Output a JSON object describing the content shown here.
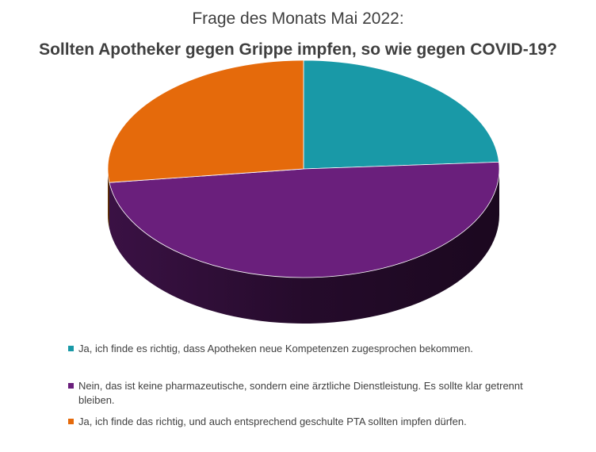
{
  "chart_data": {
    "type": "pie",
    "style": "3d",
    "title_line1": "Frage des Monats Mai 2022:",
    "title_line2": "Sollten Apotheker gegen Grippe impfen, so wie gegen COVID-19?",
    "slices": [
      {
        "label": "Ja, ich finde es richtig, dass Apotheken neue Kompetenzen zugesprochen bekommen.",
        "value": 24,
        "color": "#1999a7"
      },
      {
        "label": "Nein, das ist keine pharmazeutische, sondern eine ärztliche Dienstleistung. Es sollte klar getrennt bleiben.",
        "value": 49,
        "color": "#6a1f7c"
      },
      {
        "label": "Ja, ich finde das richtig, und auch entsprechend geschulte PTA sollten impfen dürfen.",
        "value": 27,
        "color": "#e56a0b"
      }
    ],
    "legend_position": "bottom"
  }
}
